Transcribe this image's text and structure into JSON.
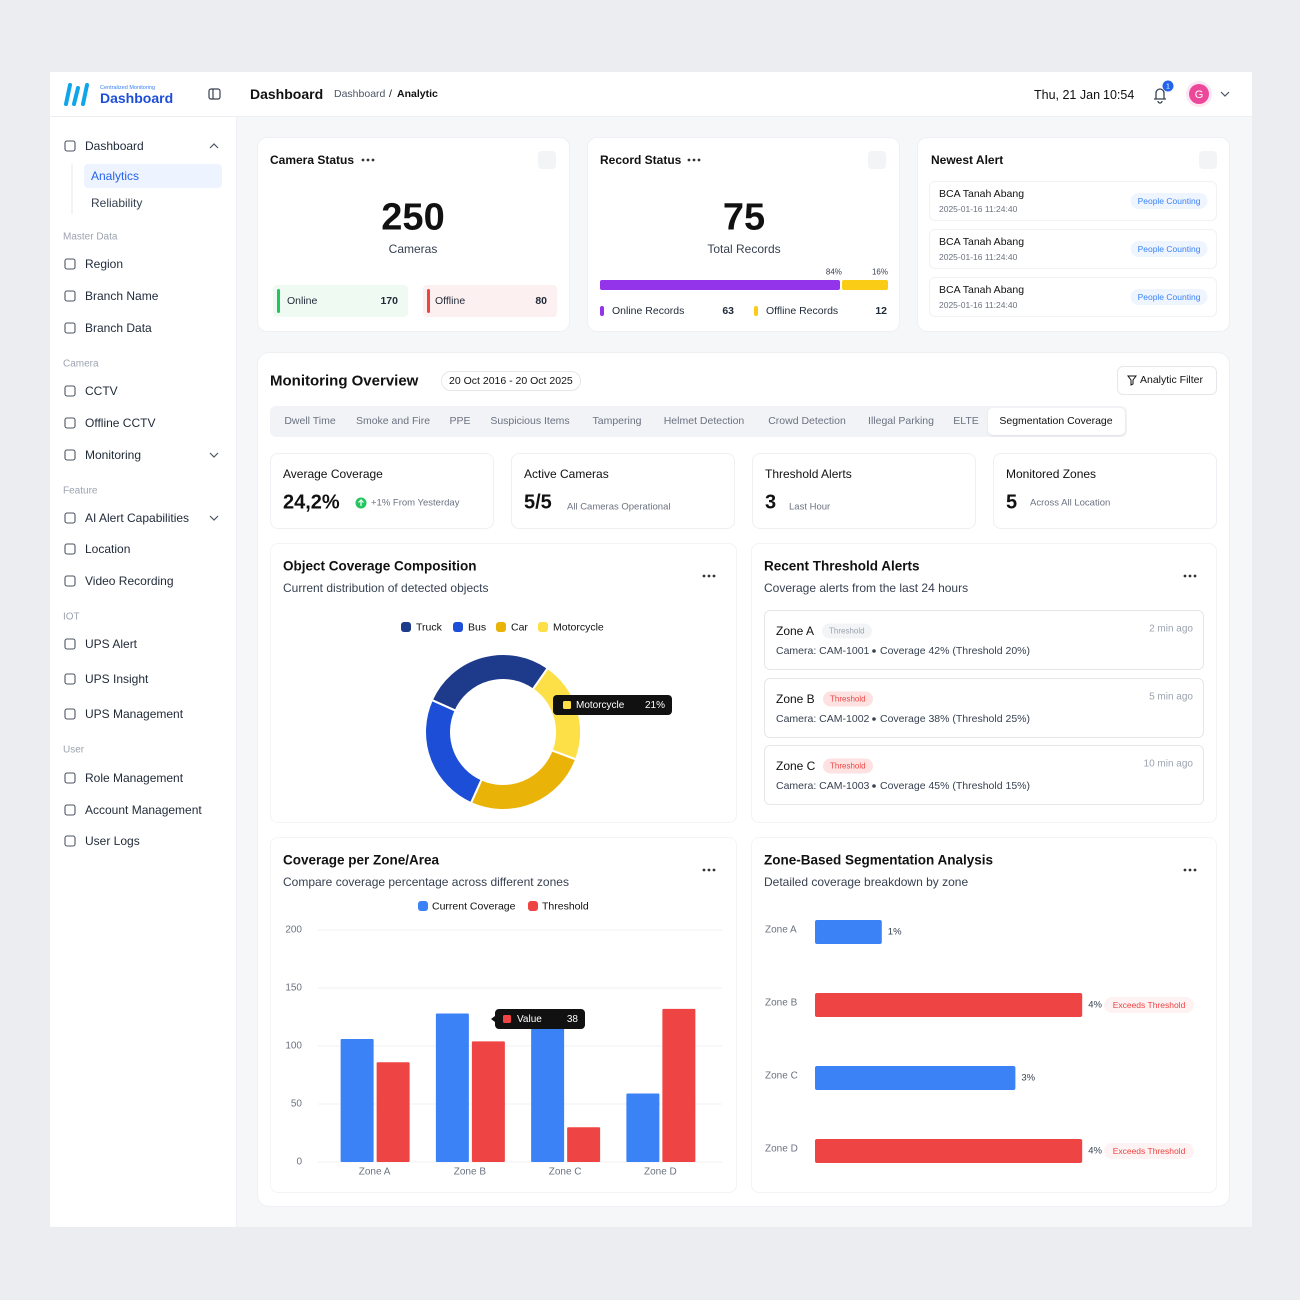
{
  "header": {
    "logo_caption": "Centralized Monitoring",
    "logo_title": "Dashboard",
    "page_title": "Dashboard",
    "breadcrumb": [
      "Dashboard",
      "Analytic"
    ],
    "breadcrumb_separator": "/",
    "date": "Thu, 21 Jan",
    "time": "10:54",
    "notification_count": 1,
    "avatar": "G"
  },
  "sidebar": {
    "dashboard": {
      "label": "Dashboard",
      "children": [
        "Analytics",
        "Reliability"
      ]
    },
    "sections": [
      {
        "title": "Master Data",
        "items": [
          {
            "label": "Region"
          },
          {
            "label": "Branch Name"
          },
          {
            "label": "Branch Data"
          }
        ]
      },
      {
        "title": "Camera",
        "items": [
          {
            "label": "CCTV"
          },
          {
            "label": "Offline CCTV"
          },
          {
            "label": "Monitoring",
            "has_submenu": true
          }
        ]
      },
      {
        "title": "Feature",
        "items": [
          {
            "label": "AI Alert Capabilities",
            "has_submenu": true
          },
          {
            "label": "Location"
          },
          {
            "label": "Video Recording"
          }
        ]
      },
      {
        "title": "IOT",
        "items": [
          {
            "label": "UPS Alert"
          },
          {
            "label": "UPS Insight"
          },
          {
            "label": "UPS Management"
          }
        ]
      },
      {
        "title": "User",
        "items": [
          {
            "label": "Role Management"
          },
          {
            "label": "Account Management"
          },
          {
            "label": "User Logs"
          }
        ]
      }
    ]
  },
  "camera_status": {
    "title": "Camera Status",
    "total": 250,
    "unit": "Cameras",
    "online": {
      "label": "Online",
      "value": 170
    },
    "offline": {
      "label": "Offline",
      "value": 80
    }
  },
  "record_status": {
    "title": "Record Status",
    "total": 75,
    "unit": "Total Records",
    "online": {
      "label": "Online Records",
      "value": 63,
      "percent": 84,
      "percent_label": "84%"
    },
    "offline": {
      "label": "Offline Records",
      "value": 12,
      "percent": 16,
      "percent_label": "16%"
    }
  },
  "newest_alert": {
    "title": "Newest Alert",
    "items": [
      {
        "location": "BCA Tanah Abang",
        "time": "2025-01-16 11:24:40",
        "type": "People Counting"
      },
      {
        "location": "BCA Tanah Abang",
        "time": "2025-01-16 11:24:40",
        "type": "People Counting"
      },
      {
        "location": "BCA Tanah Abang",
        "time": "2025-01-16 11:24:40",
        "type": "People Counting"
      }
    ]
  },
  "monitoring": {
    "title": "Monitoring Overview",
    "date_range": "20 Oct 2016 - 20 Oct 2025",
    "filter_button": "Analytic Filter",
    "tabs": [
      "Dwell Time",
      "Smoke and Fire",
      "PPE",
      "Suspicious Items",
      "Tampering",
      "Helmet Detection",
      "Crowd Detection",
      "Illegal Parking",
      "ELTE",
      "Segmentation Coverage"
    ],
    "active_tab": "Segmentation Coverage",
    "stats": [
      {
        "label": "Average Coverage",
        "value": "24,2%",
        "note": "+1% From Yesterday"
      },
      {
        "label": "Active Cameras",
        "value": "5/5",
        "note": "All Cameras Operational"
      },
      {
        "label": "Threshold Alerts",
        "value": 3,
        "note": "Last Hour"
      },
      {
        "label": "Monitored Zones",
        "value": 5,
        "note": "Across All Location"
      }
    ]
  },
  "donut_chart": {
    "type": "donut",
    "title": "Object Coverage Composition",
    "subtitle": "Current distribution of detected objects",
    "categories": [
      "Truck",
      "Bus",
      "Car",
      "Motorcycle"
    ],
    "values": [
      28,
      25,
      26,
      21
    ],
    "value_labels": [
      null,
      null,
      null,
      "21%"
    ],
    "colors": [
      "#1e3a8a",
      "#1d4ed8",
      "#eab308",
      "#fde047"
    ]
  },
  "threshold_alerts": {
    "title": "Recent Threshold Alerts",
    "subtitle": "Coverage alerts from the last 24 hours",
    "items": [
      {
        "zone": "Zone A",
        "badge": "Threshold",
        "badge_color": "#9ca3af",
        "time": "2 min ago",
        "camera": "Camera: CAM-1001",
        "coverage": "Coverage 42% (Threshold 20%)"
      },
      {
        "zone": "Zone B",
        "badge": "Threshold",
        "badge_color": "#ef4444",
        "time": "5 min ago",
        "camera": "Camera: CAM-1002",
        "coverage": "Coverage 38% (Threshold 25%)"
      },
      {
        "zone": "Zone C",
        "badge": "Threshold",
        "badge_color": "#ef4444",
        "time": "10 min ago",
        "camera": "Camera: CAM-1003",
        "coverage": "Coverage 45% (Threshold 15%)"
      }
    ]
  },
  "bar_chart": {
    "type": "bar",
    "title": "Coverage per Zone/Area",
    "subtitle": "Compare coverage percentage across different zones",
    "categories": [
      "Zone A",
      "Zone B",
      "Zone C",
      "Zone D"
    ],
    "series": [
      {
        "name": "Current Coverage",
        "color": "#3b82f6",
        "values": [
          106,
          128,
          122,
          59
        ]
      },
      {
        "name": "Threshold",
        "color": "#ef4444",
        "values": [
          86,
          104,
          30,
          132
        ]
      }
    ],
    "ylim": [
      0,
      200
    ],
    "yticks": [
      0,
      50,
      100,
      150,
      200
    ],
    "grid": true,
    "tooltip": {
      "label": "Value",
      "value": 38
    }
  },
  "hbar_chart": {
    "type": "hbar",
    "title": "Zone-Based Segmentation Analysis",
    "subtitle": "Detailed coverage breakdown by zone",
    "categories": [
      "Zone A",
      "Zone B",
      "Zone C",
      "Zone D"
    ],
    "values": [
      1,
      4,
      3,
      4
    ],
    "value_labels": [
      "1%",
      "4%",
      "3%",
      "4%"
    ],
    "colors": [
      "#3b82f6",
      "#ef4444",
      "#3b82f6",
      "#ef4444"
    ],
    "xlim": [
      0,
      5
    ],
    "status_labels": [
      null,
      "Exceeds Threshold",
      null,
      "Exceeds Threshold"
    ]
  }
}
